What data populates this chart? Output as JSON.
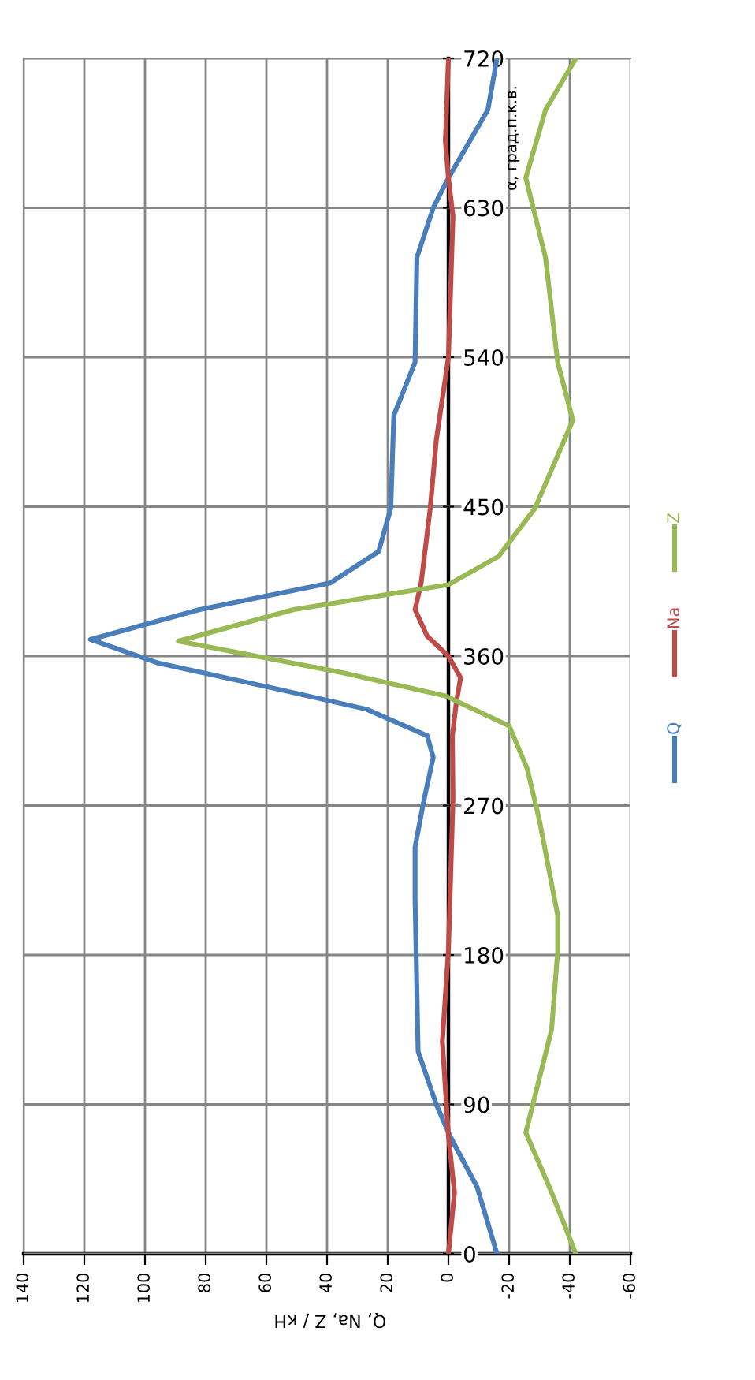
{
  "chart_data": {
    "type": "line",
    "xlabel": "Q, Na, Z / кН",
    "ylabel": "α, град.п.к.в.",
    "xlim": [
      140,
      -60
    ],
    "xticks": [
      140,
      120,
      100,
      80,
      60,
      40,
      20,
      0,
      -20,
      -40,
      -60
    ],
    "ylim": [
      0,
      720
    ],
    "yticks": [
      0,
      90,
      180,
      270,
      360,
      450,
      540,
      630,
      720
    ],
    "grid": true,
    "legend": "right",
    "line_style": "solid",
    "marker": "none",
    "series": [
      {
        "name": "Q",
        "color": "#4a7ebb",
        "x": [
          -16,
          -9.5,
          -0.5,
          4,
          10,
          11,
          11,
          8,
          5,
          7,
          27,
          56,
          96,
          118,
          82,
          39,
          23,
          19,
          18,
          11,
          10.4,
          5,
          0,
          -13,
          -16
        ],
        "values": [
          0,
          40,
          71,
          90,
          122,
          214,
          245,
          274,
          299,
          312,
          328,
          340,
          356,
          370,
          388,
          404,
          423,
          449,
          505,
          537,
          600,
          630,
          648,
          689,
          720
        ]
      },
      {
        "name": "Na",
        "color": "#be4b48",
        "x": [
          0,
          -2,
          0,
          2,
          0,
          -1.5,
          -1.3,
          -2.6,
          -4,
          0,
          7,
          11,
          9,
          6,
          4,
          0,
          -1.5,
          0,
          1,
          0
        ],
        "values": [
          0,
          37,
          71,
          128,
          183,
          274,
          312,
          332,
          347,
          360,
          372,
          388,
          404,
          449,
          490,
          540,
          625,
          648,
          670,
          720
        ]
      },
      {
        "name": "Z",
        "color": "#98b954",
        "x": [
          -42,
          -34,
          -25.5,
          -34,
          -36,
          -36,
          -30,
          -26,
          -20,
          1,
          35,
          89,
          51,
          0,
          -16.5,
          -28.5,
          -41,
          -36,
          -32,
          -25.5,
          -32,
          -42
        ],
        "values": [
          0,
          37,
          73,
          135,
          182,
          204,
          261,
          292,
          318,
          336,
          350,
          369,
          388,
          403,
          420,
          449,
          502,
          537,
          600,
          648,
          689,
          720
        ]
      }
    ]
  }
}
